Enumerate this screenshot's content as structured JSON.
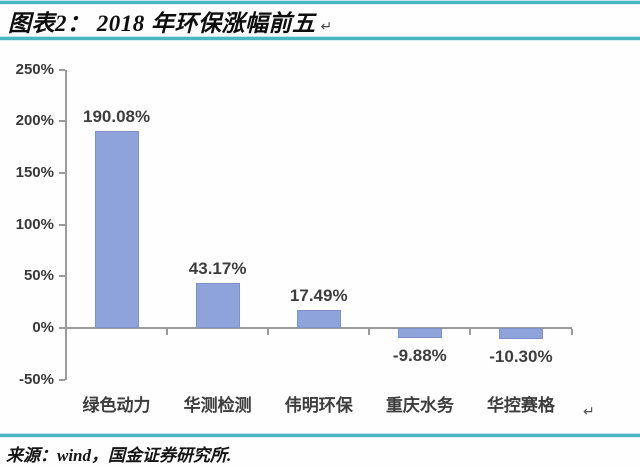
{
  "header": {
    "title": "图表2： 2018 年环保涨幅前五",
    "paragraph_mark": "↵"
  },
  "footer": {
    "source": "来源：wind，国金证券研究所."
  },
  "chart": {
    "paragraph_mark": "↵"
  },
  "chart_data": {
    "type": "bar",
    "title": "2018 年环保涨幅前五",
    "categories": [
      "绿色动力",
      "华测检测",
      "伟明环保",
      "重庆水务",
      "华控赛格"
    ],
    "values": [
      190.08,
      43.17,
      17.49,
      -9.88,
      -10.3
    ],
    "data_labels": [
      "190.08%",
      "43.17%",
      "17.49%",
      "-9.88%",
      "-10.30%"
    ],
    "y_axis": {
      "ticks": [
        {
          "label": "250%",
          "value": 250
        },
        {
          "label": "200%",
          "value": 200
        },
        {
          "label": "150%",
          "value": 150
        },
        {
          "label": "100%",
          "value": 100
        },
        {
          "label": "50%",
          "value": 50
        },
        {
          "label": "0%",
          "value": 0
        },
        {
          "label": "-50%",
          "value": -50
        }
      ],
      "range": [
        -50,
        250
      ]
    },
    "grid": false,
    "legend": "none",
    "colors": {
      "bar": "#8EA3D9",
      "bar_border": "#7D92C9",
      "axis": "#9B9B9B",
      "label": "#3D3D3D",
      "accent_teal": "#4AB6BF"
    }
  }
}
